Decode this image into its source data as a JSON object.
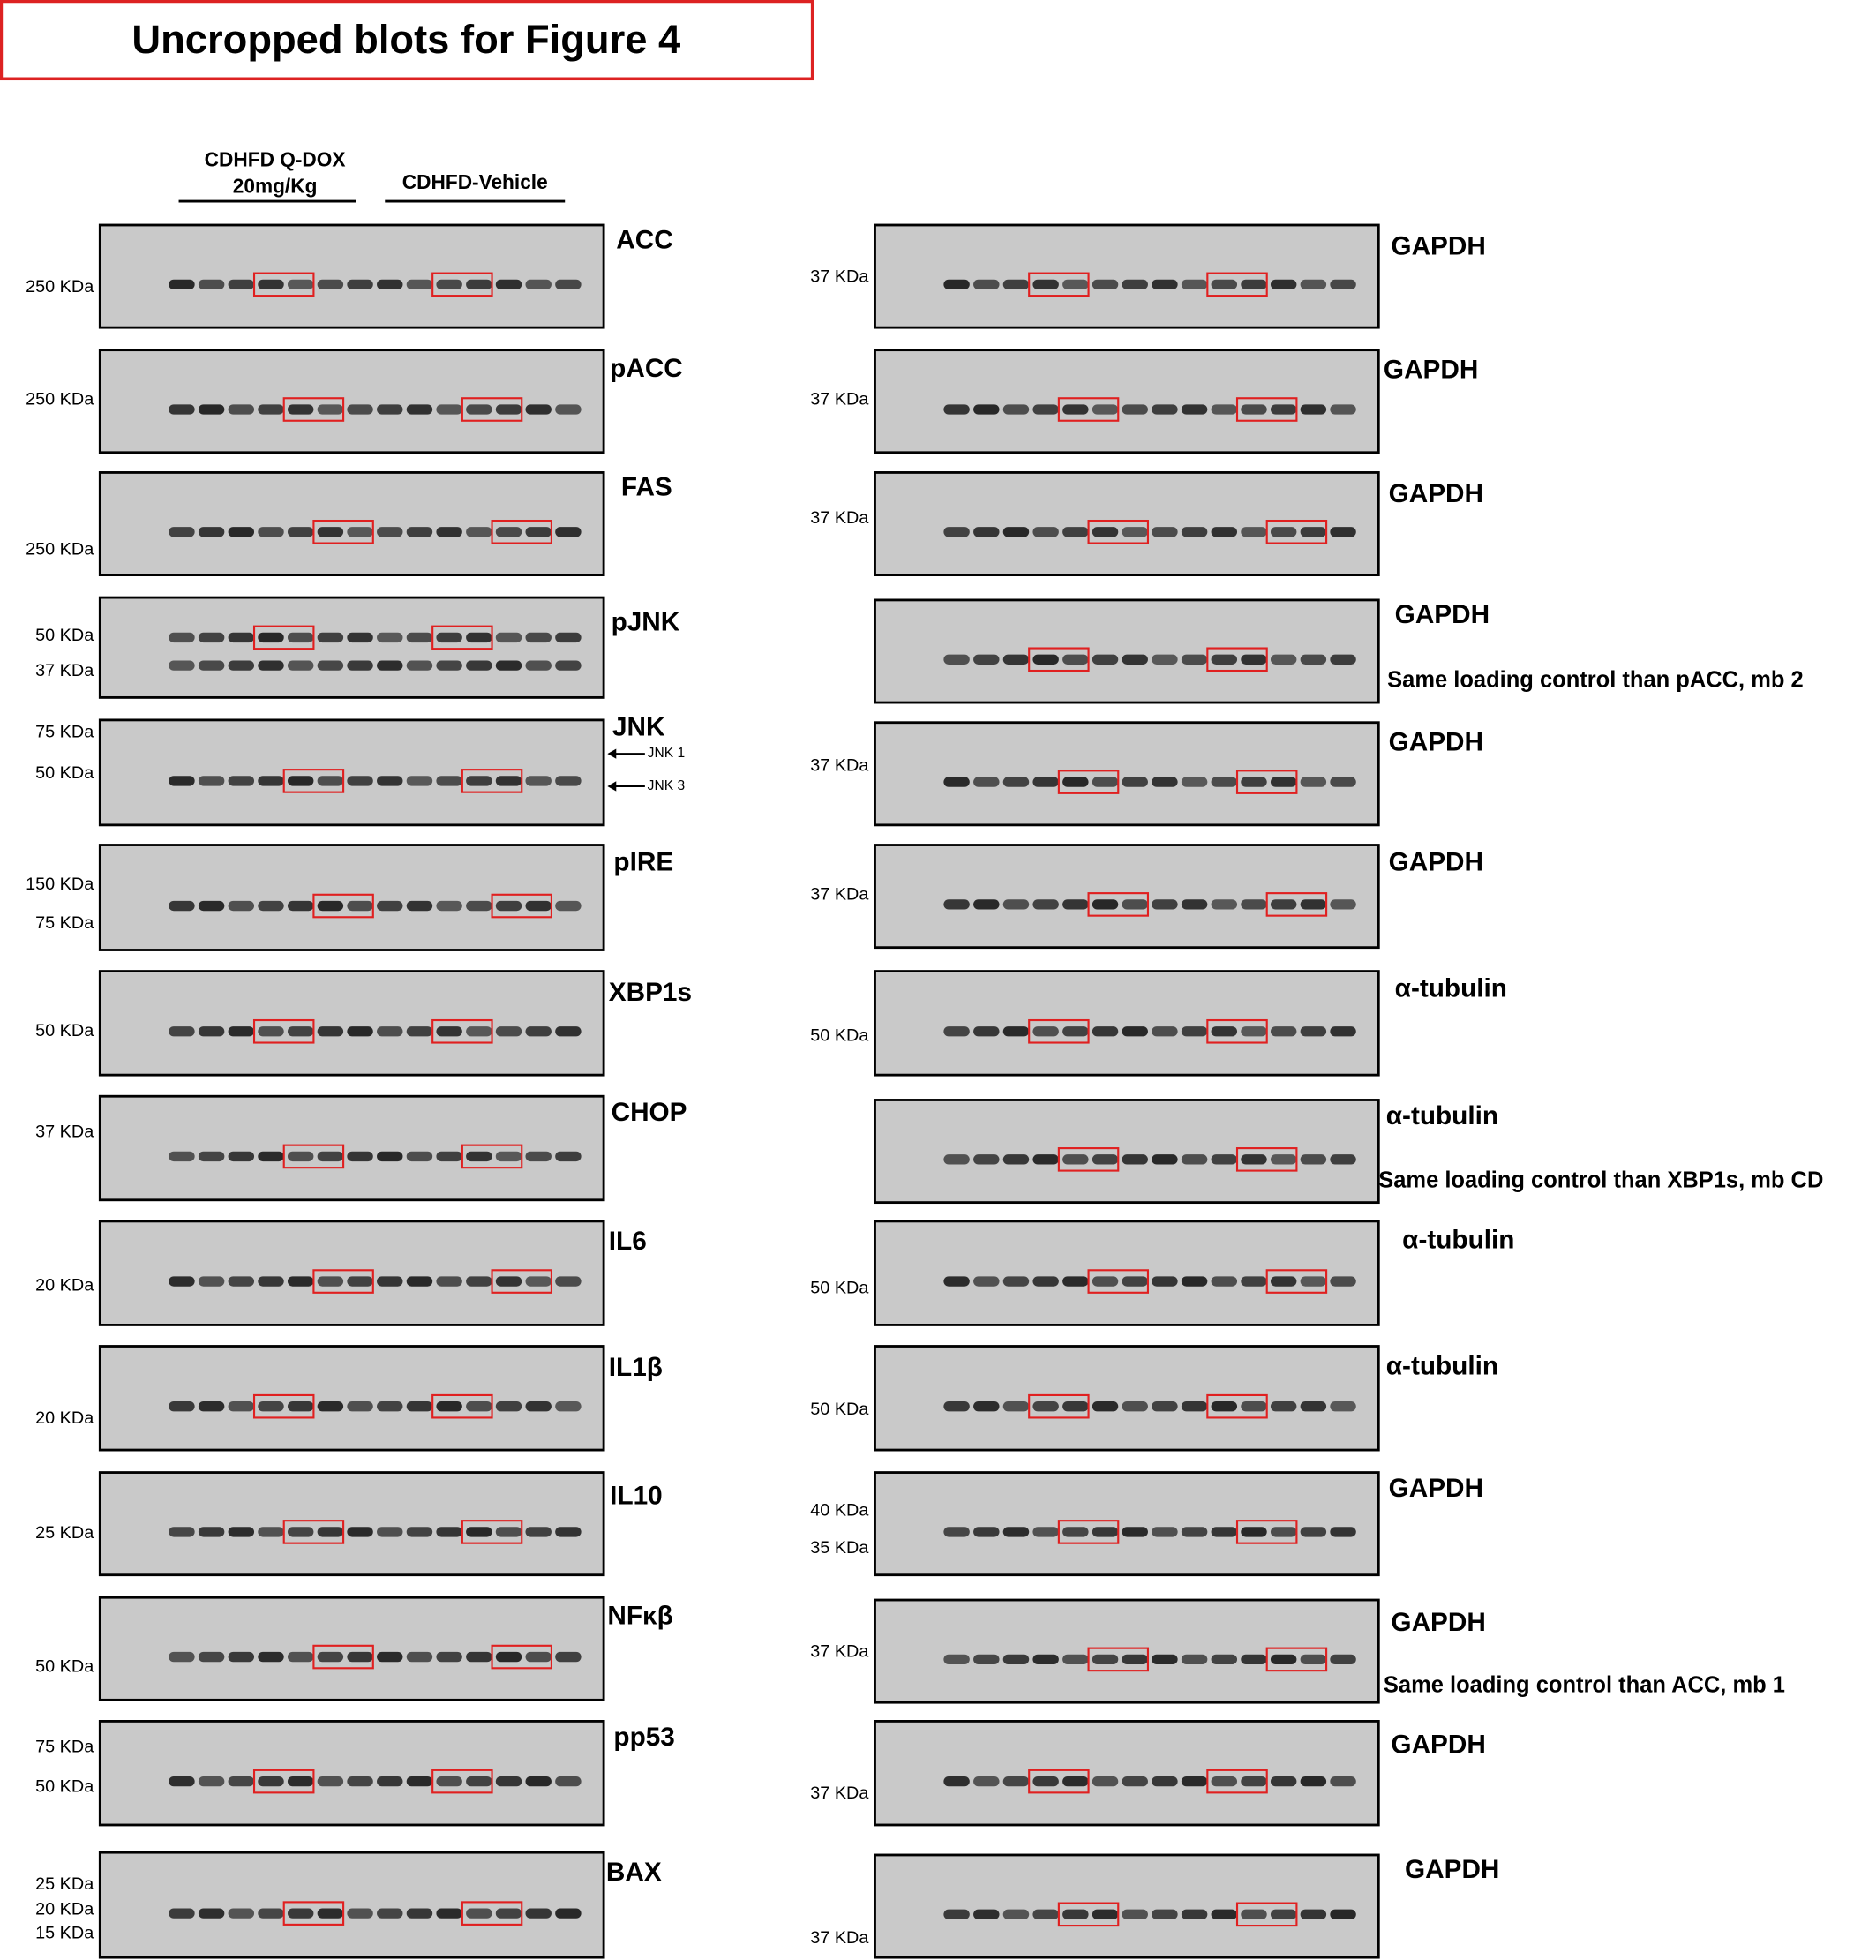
{
  "header": {
    "title": "Uncropped blots for Figure 4",
    "groups": [
      {
        "lines": [
          "CDHFD Q-DOX",
          "20mg/Kg"
        ]
      },
      {
        "lines": [
          "CDHFD-Vehicle"
        ]
      }
    ]
  },
  "left": [
    {
      "label": "ACC",
      "markers": [
        "250 KDa"
      ]
    },
    {
      "label": "pACC",
      "markers": [
        "250 KDa"
      ]
    },
    {
      "label": "FAS",
      "markers": [
        "250 KDa"
      ]
    },
    {
      "label": "pJNK",
      "markers": [
        "50 KDa",
        "37 KDa"
      ]
    },
    {
      "label": "JNK",
      "markers": [
        "75 KDa",
        "50 KDa"
      ],
      "arrows": [
        "JNK 1",
        "JNK 3"
      ]
    },
    {
      "label": "pIRE",
      "markers": [
        "150 KDa",
        "75 KDa"
      ]
    },
    {
      "label": "XBP1s",
      "markers": [
        "50 KDa"
      ]
    },
    {
      "label": "CHOP",
      "markers": [
        "37 KDa"
      ]
    },
    {
      "label": "IL6",
      "markers": [
        "20 KDa"
      ]
    },
    {
      "label": "IL1β",
      "markers": [
        "20 KDa"
      ]
    },
    {
      "label": "IL10",
      "markers": [
        "25 KDa"
      ]
    },
    {
      "label": "NFκβ",
      "markers": [
        "50 KDa"
      ]
    },
    {
      "label": "pp53",
      "markers": [
        "75 KDa",
        "50 KDa"
      ]
    },
    {
      "label": "BAX",
      "markers": [
        "25 KDa",
        "20 KDa",
        "15 KDa"
      ]
    }
  ],
  "right": [
    {
      "label": "GAPDH",
      "markers": [
        "37 KDa"
      ]
    },
    {
      "label": "GAPDH",
      "markers": [
        "37 KDa"
      ]
    },
    {
      "label": "GAPDH",
      "markers": [
        "37 KDa"
      ]
    },
    {
      "label": "GAPDH",
      "markers": [],
      "note": "Same loading control than pACC, mb 2"
    },
    {
      "label": "GAPDH",
      "markers": [
        "37 KDa"
      ]
    },
    {
      "label": "GAPDH",
      "markers": [
        "37 KDa"
      ]
    },
    {
      "label": "α-tubulin",
      "markers": [
        "50 KDa"
      ]
    },
    {
      "label": "α-tubulin",
      "markers": [],
      "note": "Same loading control than XBP1s, mb CD"
    },
    {
      "label": "α-tubulin",
      "markers": [
        "50 KDa"
      ]
    },
    {
      "label": "α-tubulin",
      "markers": [
        "50 KDa"
      ]
    },
    {
      "label": "GAPDH",
      "markers": [
        "40 KDa",
        "35 KDa"
      ]
    },
    {
      "label": "GAPDH",
      "markers": [
        "37 KDa"
      ],
      "note": "Same loading control than ACC, mb 1"
    },
    {
      "label": "GAPDH",
      "markers": [
        "37 KDa"
      ]
    },
    {
      "label": "GAPDH",
      "markers": [
        "37 KDa"
      ]
    }
  ]
}
